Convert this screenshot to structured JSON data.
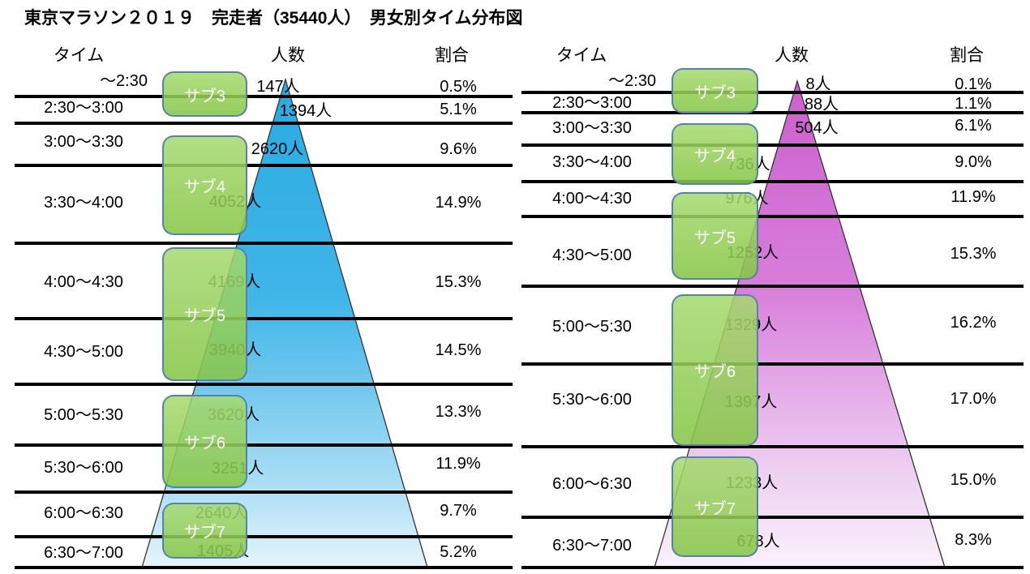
{
  "title": "東京マラソン２０１９　完走者（35440人）　男女別タイム分布図",
  "colors": {
    "left_gradient": [
      "#29ABE2",
      "#40B5E8",
      "#A7DCF4",
      "#E6F4FC"
    ],
    "right_gradient": [
      "#CC60CE",
      "#D87DDB",
      "#EFD3F2",
      "#F9F1FA"
    ],
    "badge_fill": "#8FCB55",
    "badge_border": "#4E7DB0",
    "divider_line": "#000000"
  },
  "charts": [
    {
      "side": "left",
      "headers": {
        "time": "タイム",
        "count": "人数",
        "ratio": "割合"
      },
      "rows": [
        {
          "time": "～2:30",
          "count": "147人",
          "ratio": "0.5%"
        },
        {
          "time": "2:30～3:00",
          "count": "1394人",
          "ratio": "5.1%"
        },
        {
          "time": "3:00～3:30",
          "count": "2620人",
          "ratio": "9.6%"
        },
        {
          "time": "3:30～4:00",
          "count": "4052人",
          "ratio": "14.9%"
        },
        {
          "time": "4:00～4:30",
          "count": "4169人",
          "ratio": "15.3%"
        },
        {
          "time": "4:30～5:00",
          "count": "3940人",
          "ratio": "14.5%"
        },
        {
          "time": "5:00～5:30",
          "count": "3620人",
          "ratio": "13.3%"
        },
        {
          "time": "5:30～6:00",
          "count": "3251人",
          "ratio": "11.9%"
        },
        {
          "time": "6:00～6:30",
          "count": "2640人",
          "ratio": "9.7%"
        },
        {
          "time": "6:30～7:00",
          "count": "1405人",
          "ratio": "5.2%"
        }
      ],
      "badges": [
        "サブ3",
        "サブ4",
        "サブ5",
        "サブ6",
        "サブ7"
      ]
    },
    {
      "side": "right",
      "headers": {
        "time": "タイム",
        "count": "人数",
        "ratio": "割合"
      },
      "rows": [
        {
          "time": "～2:30",
          "count": "8人",
          "ratio": "0.1%"
        },
        {
          "time": "2:30～3:00",
          "count": "88人",
          "ratio": "1.1%"
        },
        {
          "time": "3:00～3:30",
          "count": "504人",
          "ratio": "6.1%"
        },
        {
          "time": "3:30～4:00",
          "count": "736人",
          "ratio": "9.0%"
        },
        {
          "time": "4:00～4:30",
          "count": "976人",
          "ratio": "11.9%"
        },
        {
          "time": "4:30～5:00",
          "count": "1252人",
          "ratio": "15.3%"
        },
        {
          "time": "5:00～5:30",
          "count": "1329人",
          "ratio": "16.2%"
        },
        {
          "time": "5:30～6:00",
          "count": "1397人",
          "ratio": "17.0%"
        },
        {
          "time": "6:00～6:30",
          "count": "1233人",
          "ratio": "15.0%"
        },
        {
          "time": "6:30～7:00",
          "count": "678人",
          "ratio": "8.3%"
        }
      ],
      "badges": [
        "サブ3",
        "サブ4",
        "サブ5",
        "サブ6",
        "サブ7"
      ]
    }
  ],
  "chart_data": [
    {
      "type": "area",
      "subtype": "time-distribution-pyramid",
      "title": "東京マラソン２０１９ 完走者（35440人） 男女別タイム分布図",
      "series_name": "left (blue pyramid)",
      "categories": [
        "～2:30",
        "2:30～3:00",
        "3:00～3:30",
        "3:30～4:00",
        "4:00～4:30",
        "4:30～5:00",
        "5:00～5:30",
        "5:30～6:00",
        "6:00～6:30",
        "6:30～7:00"
      ],
      "values": [
        147,
        1394,
        2620,
        4052,
        4169,
        3940,
        3620,
        3251,
        2640,
        1405
      ],
      "percentages": [
        0.5,
        5.1,
        9.6,
        14.9,
        15.3,
        14.5,
        13.3,
        11.9,
        9.7,
        5.2
      ],
      "annotations": [
        "サブ3",
        "サブ4",
        "サブ5",
        "サブ6",
        "サブ7"
      ],
      "columns": [
        "タイム",
        "人数",
        "割合"
      ],
      "legend": "none",
      "grid": "horizontal black dividers"
    },
    {
      "type": "area",
      "subtype": "time-distribution-pyramid",
      "title": "東京マラソン２０１９ 完走者（35440人） 男女別タイム分布図",
      "series_name": "right (pink pyramid)",
      "categories": [
        "～2:30",
        "2:30～3:00",
        "3:00～3:30",
        "3:30～4:00",
        "4:00～4:30",
        "4:30～5:00",
        "5:00～5:30",
        "5:30～6:00",
        "6:00～6:30",
        "6:30～7:00"
      ],
      "values": [
        8,
        88,
        504,
        736,
        976,
        1252,
        1329,
        1397,
        1233,
        678
      ],
      "percentages": [
        0.1,
        1.1,
        6.1,
        9.0,
        11.9,
        15.3,
        16.2,
        17.0,
        15.0,
        8.3
      ],
      "annotations": [
        "サブ3",
        "サブ4",
        "サブ5",
        "サブ6",
        "サブ7"
      ],
      "columns": [
        "タイム",
        "人数",
        "割合"
      ],
      "legend": "none",
      "grid": "horizontal black dividers"
    }
  ]
}
